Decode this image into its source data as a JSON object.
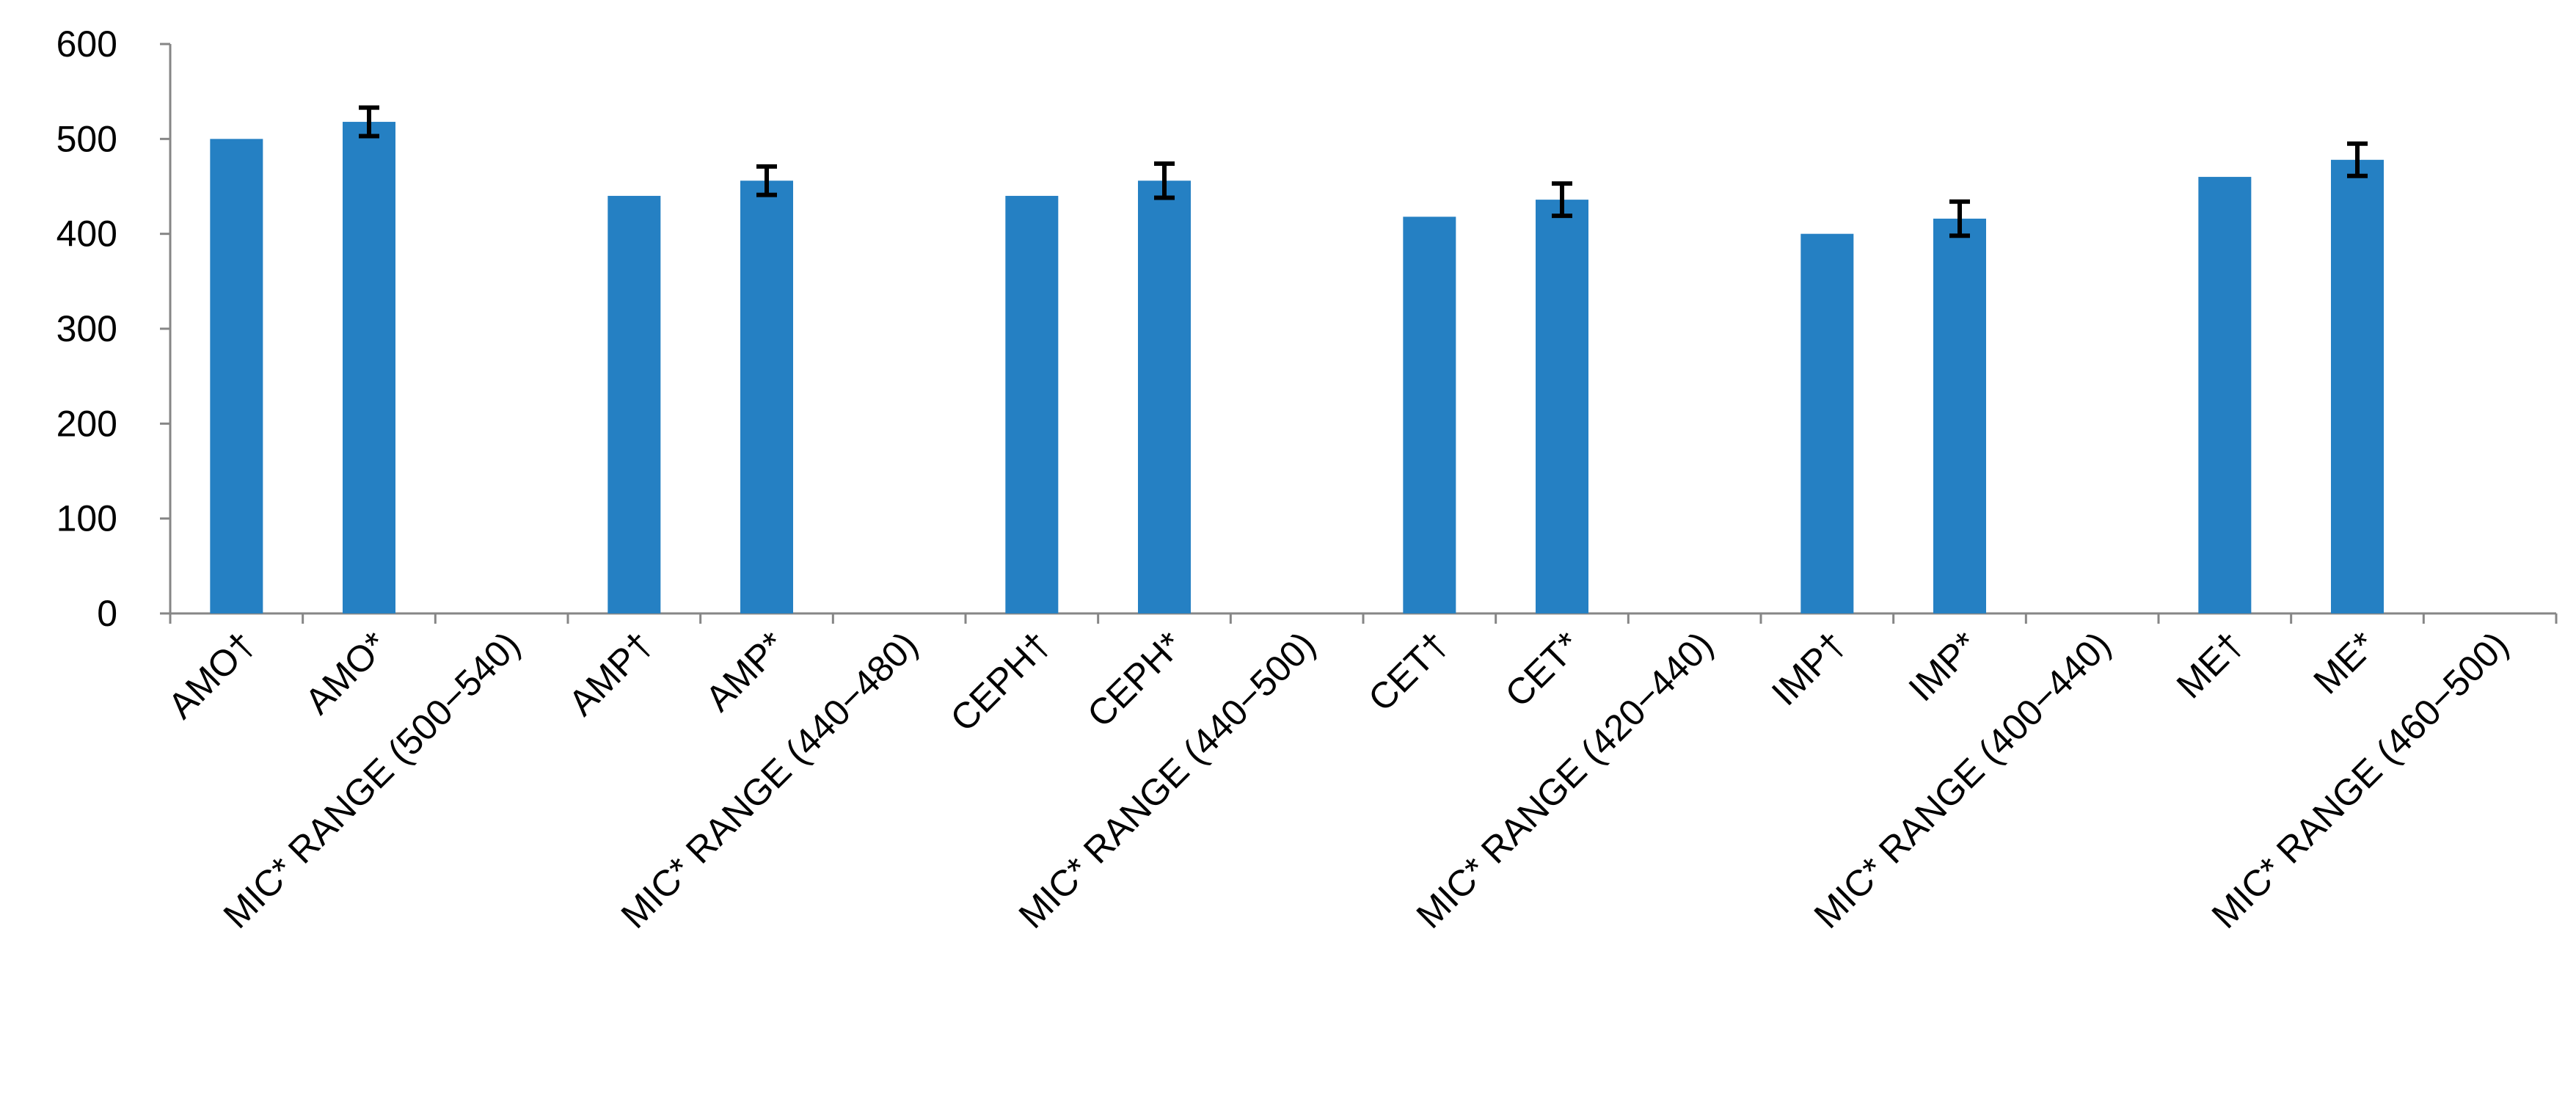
{
  "chart_data": {
    "type": "bar",
    "title": "",
    "xlabel": "",
    "ylabel": "",
    "ylim": [
      0,
      600
    ],
    "y_ticks": [
      0,
      100,
      200,
      300,
      400,
      500,
      600
    ],
    "grid": false,
    "legend": "none",
    "bar_color": "#2580C3",
    "categories": [
      "AMO†",
      "AMO*",
      "MIC* RANGE (500−540)",
      "AMP†",
      "AMP*",
      "MIC* RANGE (440−480)",
      "CEPH†",
      "CEPH*",
      "MIC* RANGE (440−500)",
      "CET†",
      "CET*",
      "MIC* RANGE (420−440)",
      "IMP†",
      "IMP*",
      "MIC* RANGE (400−440)",
      "ME†",
      "ME*",
      "MIC* RANGE (460−500)"
    ],
    "values": [
      500,
      518,
      null,
      440,
      456,
      null,
      440,
      456,
      null,
      418,
      436,
      null,
      400,
      416,
      null,
      460,
      478,
      null
    ],
    "error": [
      null,
      15,
      null,
      null,
      15,
      null,
      null,
      18,
      null,
      null,
      17,
      null,
      null,
      18,
      null,
      null,
      17,
      null
    ]
  }
}
